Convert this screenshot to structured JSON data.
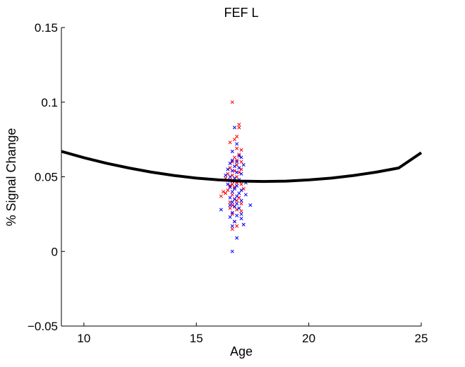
{
  "chart_data": {
    "type": "scatter",
    "title": "FEF L",
    "xlabel": "Age",
    "ylabel": "% Signal Change",
    "xlim": [
      9,
      25
    ],
    "ylim": [
      -0.05,
      0.15
    ],
    "xticks": [
      10,
      15,
      20,
      25
    ],
    "xtick_labels": [
      "10",
      "15",
      "20",
      "25"
    ],
    "yticks": [
      -0.05,
      0,
      0.05,
      0.1,
      0.15
    ],
    "ytick_labels": [
      "−0.05",
      "0",
      "0.05",
      "0.1",
      "0.15"
    ],
    "grid": false,
    "legend": "none",
    "marker": "x",
    "series": [
      {
        "color": "#ff0000",
        "points": [
          [
            16.6,
            0.1
          ],
          [
            16.9,
            0.085
          ],
          [
            16.9,
            0.083
          ],
          [
            16.8,
            0.077
          ],
          [
            16.7,
            0.075
          ],
          [
            16.5,
            0.073
          ],
          [
            17.0,
            0.068
          ],
          [
            16.8,
            0.069
          ],
          [
            16.9,
            0.065
          ],
          [
            16.7,
            0.063
          ],
          [
            16.8,
            0.061
          ],
          [
            17.0,
            0.06
          ],
          [
            16.6,
            0.06
          ],
          [
            16.8,
            0.058
          ],
          [
            16.5,
            0.056
          ],
          [
            17.0,
            0.055
          ],
          [
            16.7,
            0.054
          ],
          [
            16.9,
            0.053
          ],
          [
            16.4,
            0.052
          ],
          [
            16.6,
            0.051
          ],
          [
            16.8,
            0.05
          ],
          [
            16.3,
            0.049
          ],
          [
            16.5,
            0.048
          ],
          [
            16.9,
            0.047
          ],
          [
            16.7,
            0.047
          ],
          [
            16.8,
            0.046
          ],
          [
            16.6,
            0.045
          ],
          [
            17.0,
            0.045
          ],
          [
            16.5,
            0.044
          ],
          [
            16.7,
            0.043
          ],
          [
            17.1,
            0.042
          ],
          [
            16.4,
            0.041
          ],
          [
            16.2,
            0.04
          ],
          [
            16.3,
            0.039
          ],
          [
            16.6,
            0.038
          ],
          [
            16.1,
            0.037
          ],
          [
            16.9,
            0.036
          ],
          [
            16.7,
            0.035
          ],
          [
            16.8,
            0.034
          ],
          [
            16.5,
            0.033
          ],
          [
            17.0,
            0.032
          ],
          [
            16.6,
            0.031
          ],
          [
            16.7,
            0.03
          ],
          [
            16.5,
            0.029
          ],
          [
            16.8,
            0.028
          ],
          [
            17.0,
            0.027
          ],
          [
            16.6,
            0.025
          ],
          [
            16.7,
            0.02
          ],
          [
            16.8,
            0.017
          ],
          [
            16.6,
            0.015
          ]
        ]
      },
      {
        "color": "#0000ff",
        "points": [
          [
            16.7,
            0.083
          ],
          [
            16.8,
            0.072
          ],
          [
            16.6,
            0.067
          ],
          [
            16.9,
            0.064
          ],
          [
            17.0,
            0.063
          ],
          [
            16.6,
            0.061
          ],
          [
            16.8,
            0.06
          ],
          [
            16.5,
            0.059
          ],
          [
            17.1,
            0.058
          ],
          [
            16.7,
            0.057
          ],
          [
            16.9,
            0.056
          ],
          [
            16.4,
            0.055
          ],
          [
            16.6,
            0.054
          ],
          [
            16.8,
            0.053
          ],
          [
            17.0,
            0.052
          ],
          [
            16.3,
            0.051
          ],
          [
            16.5,
            0.05
          ],
          [
            16.7,
            0.049
          ],
          [
            16.9,
            0.048
          ],
          [
            16.6,
            0.047
          ],
          [
            17.2,
            0.046
          ],
          [
            16.4,
            0.045
          ],
          [
            16.8,
            0.044
          ],
          [
            16.5,
            0.043
          ],
          [
            16.7,
            0.042
          ],
          [
            17.0,
            0.041
          ],
          [
            16.6,
            0.04
          ],
          [
            16.9,
            0.039
          ],
          [
            17.2,
            0.038
          ],
          [
            16.8,
            0.037
          ],
          [
            16.5,
            0.036
          ],
          [
            16.7,
            0.035
          ],
          [
            17.0,
            0.034
          ],
          [
            16.6,
            0.033
          ],
          [
            16.8,
            0.032
          ],
          [
            16.5,
            0.031
          ],
          [
            17.4,
            0.031
          ],
          [
            16.7,
            0.03
          ],
          [
            16.9,
            0.029
          ],
          [
            16.1,
            0.028
          ],
          [
            16.6,
            0.026
          ],
          [
            17.0,
            0.025
          ],
          [
            16.8,
            0.024
          ],
          [
            16.5,
            0.023
          ],
          [
            17.0,
            0.022
          ],
          [
            16.7,
            0.02
          ],
          [
            17.1,
            0.018
          ],
          [
            16.6,
            0.017
          ],
          [
            16.8,
            0.009
          ],
          [
            16.6,
            0.0
          ]
        ]
      },
      {
        "type": "line",
        "color": "#000000",
        "points": [
          [
            9,
            0.067
          ],
          [
            10,
            0.0628
          ],
          [
            11,
            0.0591
          ],
          [
            12,
            0.0559
          ],
          [
            13,
            0.0531
          ],
          [
            14,
            0.0509
          ],
          [
            15,
            0.0491
          ],
          [
            16,
            0.0479
          ],
          [
            17,
            0.0471
          ],
          [
            18,
            0.0469
          ],
          [
            19,
            0.0471
          ],
          [
            20,
            0.0479
          ],
          [
            21,
            0.0491
          ],
          [
            22,
            0.0509
          ],
          [
            23,
            0.0531
          ],
          [
            24,
            0.0559
          ],
          [
            25,
            0.0661
          ]
        ]
      }
    ]
  }
}
